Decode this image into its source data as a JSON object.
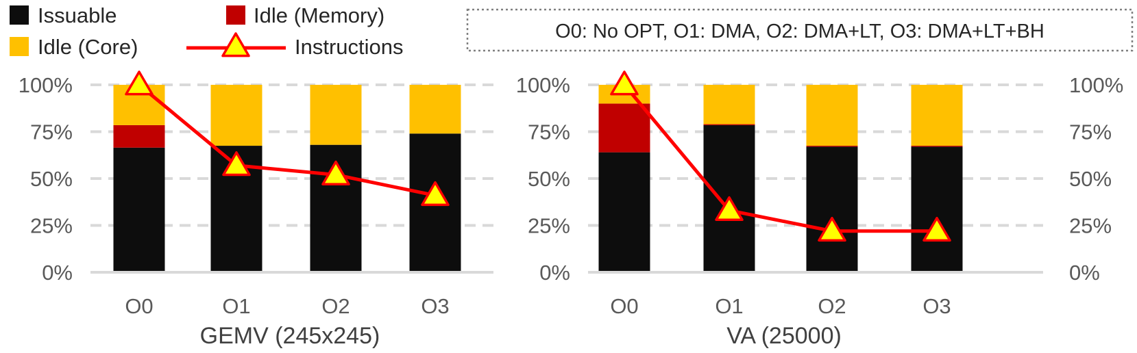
{
  "legend": {
    "entries": [
      {
        "label": "Issuable",
        "color": "#0d0d0d",
        "kind": "box"
      },
      {
        "label": "Idle (Memory)",
        "color": "#c00000",
        "kind": "box"
      },
      {
        "label": "Idle (Core)",
        "color": "#ffc000",
        "kind": "box"
      },
      {
        "label": "Instructions",
        "color": "#ff0000",
        "marker_fill": "#ffff00",
        "kind": "line"
      }
    ]
  },
  "note": "O0: No OPT, O1: DMA, O2: DMA+LT, O3: DMA+LT+BH",
  "chart_data": [
    {
      "type": "bar",
      "stacked": true,
      "title": "GEMV (245x245)",
      "categories": [
        "O0",
        "O1",
        "O2",
        "O3"
      ],
      "series": [
        {
          "name": "Issuable",
          "color": "#0d0d0d",
          "values": [
            66.5,
            67.5,
            68.0,
            74.0
          ]
        },
        {
          "name": "Idle (Memory)",
          "color": "#c00000",
          "values": [
            12.0,
            0.0,
            0.0,
            0.0
          ]
        },
        {
          "name": "Idle (Core)",
          "color": "#ffc000",
          "values": [
            21.5,
            32.5,
            32.0,
            26.0
          ]
        }
      ],
      "line_series": {
        "name": "Instructions",
        "color": "#ff0000",
        "values": [
          100,
          57,
          52,
          41
        ]
      },
      "ylim": [
        0,
        100
      ],
      "yticks": [
        "0%",
        "25%",
        "50%",
        "75%",
        "100%"
      ],
      "grid": true,
      "y_axis_side": "left"
    },
    {
      "type": "bar",
      "stacked": true,
      "title": "VA (25000)",
      "categories": [
        "O0",
        "O1",
        "O2",
        "O3"
      ],
      "series": [
        {
          "name": "Issuable",
          "color": "#0d0d0d",
          "values": [
            64.0,
            78.5,
            67.0,
            67.0
          ]
        },
        {
          "name": "Idle (Memory)",
          "color": "#c00000",
          "values": [
            26.0,
            0.5,
            0.5,
            0.5
          ]
        },
        {
          "name": "Idle (Core)",
          "color": "#ffc000",
          "values": [
            10.0,
            21.0,
            32.5,
            32.5
          ]
        }
      ],
      "line_series": {
        "name": "Instructions",
        "color": "#ff0000",
        "values": [
          100,
          33,
          22,
          22
        ]
      },
      "ylim": [
        0,
        100
      ],
      "yticks": [
        "0%",
        "25%",
        "50%",
        "75%",
        "100%"
      ],
      "grid": true,
      "y_axis_side": "both"
    }
  ]
}
